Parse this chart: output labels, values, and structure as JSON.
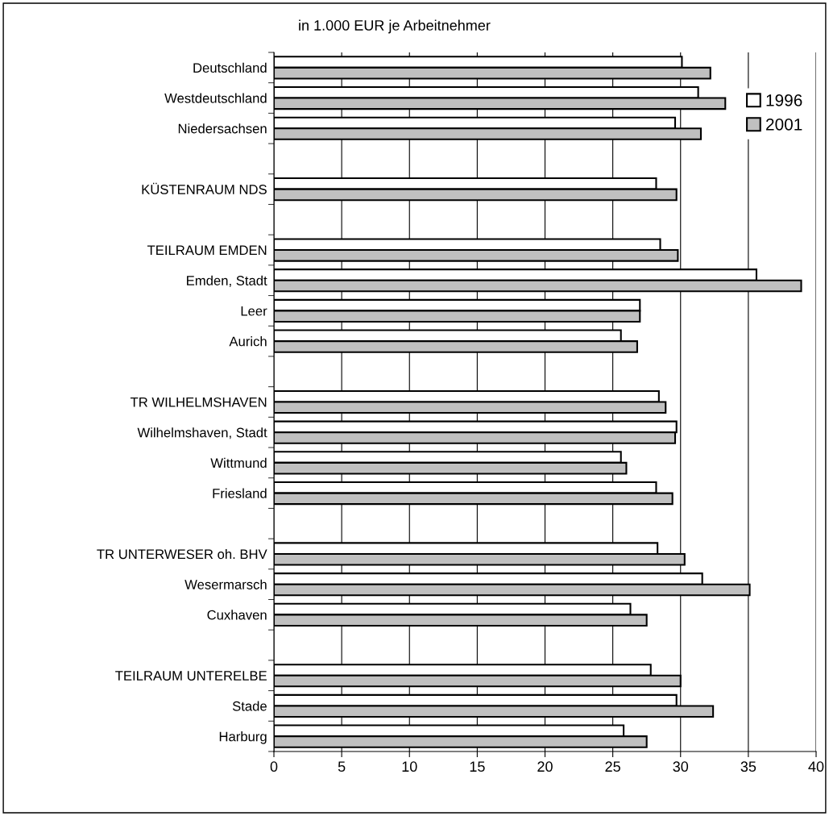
{
  "chart_data": {
    "type": "bar",
    "orientation": "horizontal",
    "title": "in 1.000 EUR je Arbeitnehmer",
    "categories": [
      "Deutschland",
      "Westdeutschland",
      "Niedersachsen",
      null,
      "KÜSTENRAUM NDS",
      null,
      "TEILRAUM EMDEN",
      "Emden, Stadt",
      "Leer",
      "Aurich",
      null,
      "TR WILHELMSHAVEN",
      "Wilhelmshaven, Stadt",
      "Wittmund",
      "Friesland",
      null,
      "TR UNTERWESER oh. BHV",
      "Wesermarsch",
      "Cuxhaven",
      null,
      "TEILRAUM UNTERELBE",
      "Stade",
      "Harburg"
    ],
    "series": [
      {
        "name": "1996",
        "color": "#ffffff",
        "values": [
          30.1,
          31.3,
          29.6,
          null,
          28.2,
          null,
          28.5,
          35.6,
          27.0,
          25.6,
          null,
          28.4,
          29.7,
          25.6,
          28.2,
          null,
          28.3,
          31.6,
          26.3,
          null,
          27.8,
          29.7,
          25.8
        ]
      },
      {
        "name": "2001",
        "color": "#c0c0c0",
        "values": [
          32.2,
          33.3,
          31.5,
          null,
          29.7,
          null,
          29.8,
          38.9,
          27.0,
          26.8,
          null,
          28.9,
          29.6,
          26.0,
          29.4,
          null,
          30.3,
          35.1,
          27.5,
          null,
          30.0,
          32.4,
          27.5
        ]
      }
    ],
    "xlim": [
      0,
      40
    ],
    "xticks": [
      0,
      5,
      10,
      15,
      20,
      25,
      30,
      35,
      40
    ],
    "grid": "x",
    "legend": "top right"
  }
}
